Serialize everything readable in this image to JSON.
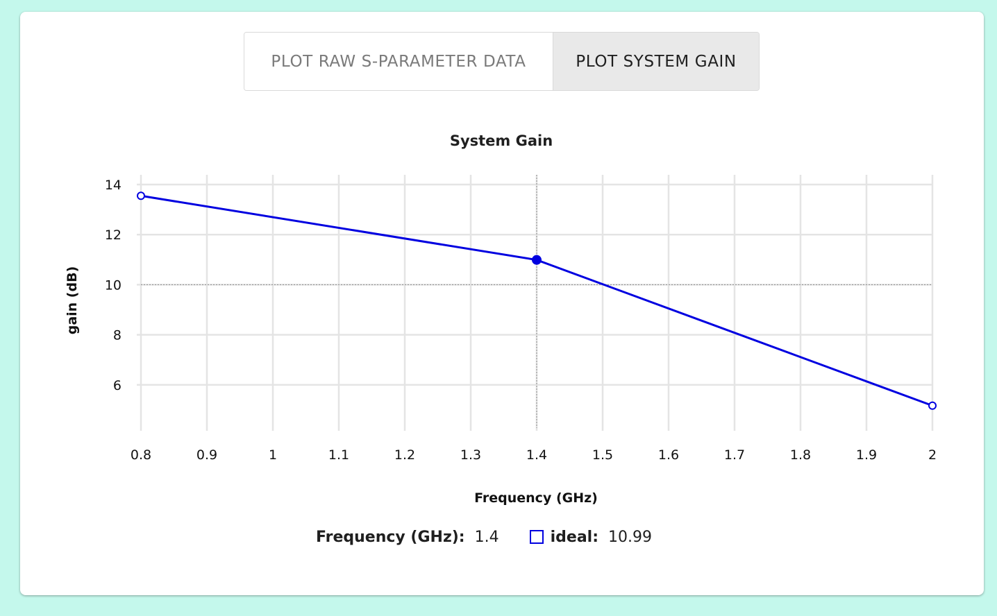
{
  "toggle": {
    "raw_label": "PLOT RAW S-PARAMETER DATA",
    "gain_label": "PLOT SYSTEM GAIN",
    "selected": "gain"
  },
  "readout": {
    "x_label": "Frequency (GHz):",
    "x_value": "1.4",
    "series_label": "ideal:",
    "series_value": "10.99"
  },
  "chart_data": {
    "type": "line",
    "title": "System Gain",
    "xlabel": "Frequency (GHz)",
    "ylabel": "gain (dB)",
    "xlim": [
      0.8,
      2.0
    ],
    "ylim": [
      4,
      14
    ],
    "x_ticks": [
      0.8,
      0.9,
      1,
      1.1,
      1.2,
      1.3,
      1.4,
      1.5,
      1.6,
      1.7,
      1.8,
      1.9,
      2
    ],
    "x_tick_labels": [
      "0.8",
      "0.9",
      "1",
      "1.1",
      "1.2",
      "1.3",
      "1.4",
      "1.5",
      "1.6",
      "1.7",
      "1.8",
      "1.9",
      "2"
    ],
    "y_ticks": [
      6,
      8,
      10,
      12,
      14
    ],
    "y_tick_labels": [
      "6",
      "8",
      "10",
      "12",
      "14"
    ],
    "grid": true,
    "series": [
      {
        "name": "ideal",
        "color": "#0000e0",
        "x": [
          0.8,
          1.4,
          2.0
        ],
        "y": [
          13.55,
          10.99,
          5.17
        ]
      }
    ],
    "crosshair": {
      "x": 1.4,
      "y": 10.0
    },
    "highlight": {
      "x": 1.4,
      "y": 10.99
    }
  }
}
